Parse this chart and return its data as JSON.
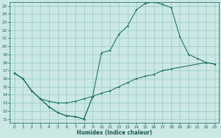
{
  "xlabel": "Humidex (Indice chaleur)",
  "xlim": [
    -0.5,
    23.5
  ],
  "ylim": [
    10.5,
    25.5
  ],
  "xticks": [
    0,
    1,
    2,
    3,
    4,
    5,
    6,
    7,
    8,
    9,
    10,
    11,
    12,
    13,
    14,
    15,
    16,
    17,
    18,
    19,
    20,
    21,
    22,
    23
  ],
  "yticks": [
    11,
    12,
    13,
    14,
    15,
    16,
    17,
    18,
    19,
    20,
    21,
    22,
    23,
    24,
    25
  ],
  "bg_color": "#cce8e4",
  "grid_color": "#99ccc8",
  "line_color": "#1a6e64",
  "curve_main_x": [
    0,
    1,
    2,
    3,
    4,
    5,
    6,
    7,
    8,
    9,
    10,
    11,
    12,
    13,
    14,
    15,
    16,
    17,
    18,
    19,
    20,
    21,
    22,
    23
  ],
  "curve_main_y": [
    16.7,
    16.0,
    14.5,
    13.5,
    12.5,
    11.8,
    11.4,
    11.3,
    11.0,
    13.8,
    19.2,
    19.5,
    21.5,
    22.5,
    24.5,
    25.3,
    25.5,
    25.2,
    24.8,
    21.2,
    19.0,
    18.5,
    18.0,
    17.8
  ],
  "curve_diag_x": [
    0,
    1,
    2,
    3,
    4,
    5,
    6,
    7,
    8,
    9,
    10,
    11,
    12,
    13,
    14,
    15,
    16,
    17,
    18,
    22,
    23
  ],
  "curve_diag_y": [
    16.7,
    16.0,
    14.5,
    13.5,
    13.2,
    13.0,
    13.0,
    13.2,
    13.5,
    13.8,
    14.2,
    14.5,
    15.0,
    15.5,
    16.0,
    16.3,
    16.5,
    17.0,
    17.2,
    18.0,
    17.8
  ],
  "curve_bot_x": [
    0,
    1,
    2,
    3,
    4,
    5,
    6,
    7,
    8,
    9
  ],
  "curve_bot_y": [
    16.7,
    16.0,
    14.5,
    13.5,
    12.5,
    11.8,
    11.4,
    11.3,
    11.0,
    13.8
  ]
}
